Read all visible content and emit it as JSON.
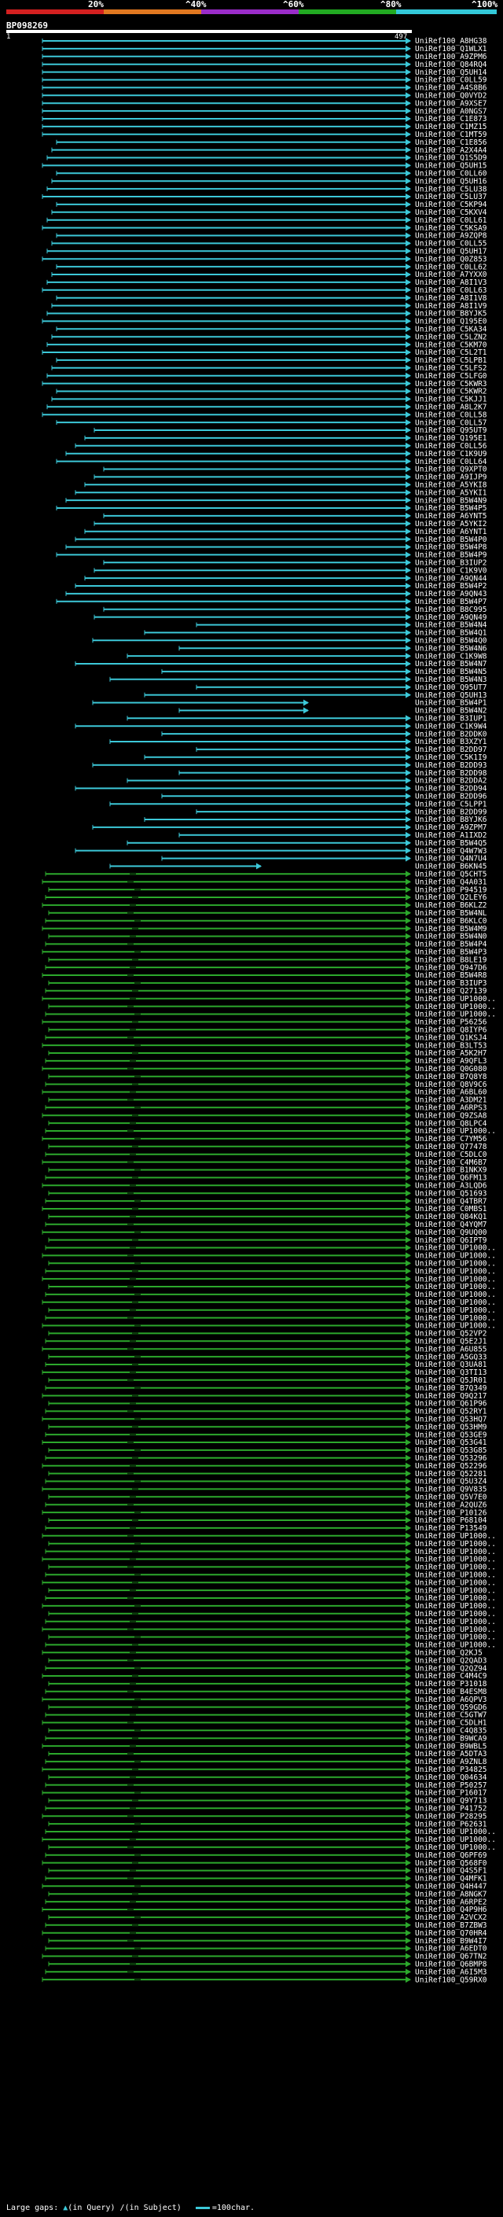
{
  "legend": {
    "labels": [
      "20%",
      "^40%",
      "^60%",
      "^80%",
      "^100%"
    ],
    "colors": [
      "#d42020",
      "#e07820",
      "#9a2cc8",
      "#22aa22",
      "#33c8d8"
    ]
  },
  "query": {
    "id": "BP098269",
    "start": "1",
    "end": "497"
  },
  "hits": [
    "UniRef100_A8HG38",
    "UniRef100_Q1WLX1",
    "UniRef100_A9ZPM6",
    "UniRef100_Q84RQ4",
    "UniRef100_Q5UH14",
    "UniRef100_C0LL59",
    "UniRef100_A4S8B6",
    "UniRef100_Q0VYD2",
    "UniRef100_A9XSE7",
    "UniRef100_A0NGS7",
    "UniRef100_C1E873",
    "UniRef100_C1MZ15",
    "UniRef100_C1MT59",
    "UniRef100_C1E856",
    "UniRef100_A2X4A4",
    "UniRef100_Q1S5D9",
    "UniRef100_Q5UH15",
    "UniRef100_C0LL60",
    "UniRef100_Q5UH16",
    "UniRef100_C5LU38",
    "UniRef100_C5LU37",
    "UniRef100_C5KP94",
    "UniRef100_C5KXV4",
    "UniRef100_C0LL61",
    "UniRef100_C5KSA9",
    "UniRef100_A9ZQP8",
    "UniRef100_C0LL55",
    "UniRef100_Q5UH17",
    "UniRef100_Q0Z853",
    "UniRef100_C0LL62",
    "UniRef100_A7YXX0",
    "UniRef100_A8I1V3",
    "UniRef100_C0LL63",
    "UniRef100_A8I1V8",
    "UniRef100_A8I1V9",
    "UniRef100_B8YJK5",
    "UniRef100_Q195E0",
    "UniRef100_C5KA34",
    "UniRef100_C5LZN2",
    "UniRef100_C5KM70",
    "UniRef100_C5L2T1",
    "UniRef100_C5LPB1",
    "UniRef100_C5LFS2",
    "UniRef100_C5LFG0",
    "UniRef100_C5KWR3",
    "UniRef100_C5KWR2",
    "UniRef100_C5KJJ1",
    "UniRef100_A8L2K7",
    "UniRef100_C0LL58",
    "UniRef100_C0LL57",
    "UniRef100_Q95UT9",
    "UniRef100_Q195E1",
    "UniRef100_C0LL56",
    "UniRef100_C1K9U9",
    "UniRef100_C0LL64",
    "UniRef100_Q9XPT0",
    "UniRef100_A9IJP9",
    "UniRef100_A5YKI8",
    "UniRef100_A5YKI1",
    "UniRef100_B5W4N9",
    "UniRef100_B5W4P5",
    "UniRef100_A6YNT5",
    "UniRef100_A5YKI2",
    "UniRef100_A6YNT1",
    "UniRef100_B5W4P0",
    "UniRef100_B5W4P8",
    "UniRef100_B5W4P9",
    "UniRef100_B3IUP2",
    "UniRef100_C1K9V0",
    "UniRef100_A9QN44",
    "UniRef100_B5W4P2",
    "UniRef100_A9QN43",
    "UniRef100_B5W4P7",
    "UniRef100_B8C995",
    "UniRef100_A9QN49",
    "UniRef100_B5W4N4",
    "UniRef100_B5W4Q1",
    "UniRef100_B5W4Q0",
    "UniRef100_B5W4N6",
    "UniRef100_C1K9W8",
    "UniRef100_B5W4N7",
    "UniRef100_B5W4N5",
    "UniRef100_B5W4N3",
    "UniRef100_Q95UT7",
    "UniRef100_Q5UH13",
    "UniRef100_B5W4P1",
    "UniRef100_B5W4N2",
    "UniRef100_B3IUP1",
    "UniRef100_C1K9W4",
    "UniRef100_B2DDK0",
    "UniRef100_B3XZY1",
    "UniRef100_B2DD97",
    "UniRef100_C5K1I9",
    "UniRef100_B2DD93",
    "UniRef100_B2DD98",
    "UniRef100_B2DDA2",
    "UniRef100_B2DD94",
    "UniRef100_B2DD96",
    "UniRef100_C5LPP1",
    "UniRef100_B2DD99",
    "UniRef100_B8YJK6",
    "UniRef100_A9ZPM7",
    "UniRef100_A1IXD2",
    "UniRef100_B5W4Q5",
    "UniRef100_Q4W7W3",
    "UniRef100_Q4N7U4",
    "UniRef100_B6KN45",
    "UniRef100_Q5CHT5",
    "UniRef100_Q4A031",
    "UniRef100_P94519",
    "UniRef100_Q2LEY6",
    "UniRef100_B6KLZ2",
    "UniRef100_B5W4NL",
    "UniRef100_B6KLC0",
    "UniRef100_B5W4M9",
    "UniRef100_B5W4N0",
    "UniRef100_B5W4P4",
    "UniRef100_B5W4P3",
    "UniRef100_B8LE19",
    "UniRef100_Q947D6",
    "UniRef100_B5W4R8",
    "UniRef100_B3IUP3",
    "UniRef100_Q27139",
    "UniRef100_UP1000..",
    "UniRef100_UP1000..",
    "UniRef100_UP1000..",
    "UniRef100_P56256",
    "UniRef100_Q8IYP6",
    "UniRef100_Q1KSJ4",
    "UniRef100_B3LT53",
    "UniRef100_A5K2H7",
    "UniRef100_A9QFL3",
    "UniRef100_Q0G080",
    "UniRef100_B7Q8Y8",
    "UniRef100_Q8V9C6",
    "UniRef100_A6BL60",
    "UniRef100_A3DM21",
    "UniRef100_A6RPS3",
    "UniRef100_Q9ZSA8",
    "UniRef100_Q8LPC4",
    "UniRef100_UP1000..",
    "UniRef100_C7YM56",
    "UniRef100_Q77478",
    "UniRef100_C5DLC0",
    "UniRef100_C4M6B7",
    "UniRef100_B1NKX9",
    "UniRef100_Q6FM13",
    "UniRef100_A3LQD6",
    "UniRef100_Q51693",
    "UniRef100_Q4TBR7",
    "UniRef100_C0MBS1",
    "UniRef100_Q84KQ1",
    "UniRef100_Q4YQM7",
    "UniRef100_Q9UQ00",
    "UniRef100_Q6IPT9",
    "UniRef100_UP1000..",
    "UniRef100_UP1000..",
    "UniRef100_UP1000..",
    "UniRef100_UP1000..",
    "UniRef100_UP1000..",
    "UniRef100_UP1000..",
    "UniRef100_UP1000..",
    "UniRef100_UP1000..",
    "UniRef100_UP1000..",
    "UniRef100_UP1000..",
    "UniRef100_UP1000..",
    "UniRef100_Q52VP2",
    "UniRef100_Q5E2J1",
    "UniRef100_A6U855",
    "UniRef100_A5GQ33",
    "UniRef100_Q3UA81",
    "UniRef100_Q3TI13",
    "UniRef100_Q5JR01",
    "UniRef100_B7Q349",
    "UniRef100_Q9Q217",
    "UniRef100_Q61P96",
    "UniRef100_Q52RY1",
    "UniRef100_Q53HQ7",
    "UniRef100_Q53HM9",
    "UniRef100_Q53GE9",
    "UniRef100_Q53G41",
    "UniRef100_Q53G85",
    "UniRef100_Q53296",
    "UniRef100_Q52296",
    "UniRef100_Q52281",
    "UniRef100_Q5U3Z4",
    "UniRef100_Q9V835",
    "UniRef100_Q5V7E0",
    "UniRef100_A2QUZ6",
    "UniRef100_P10126",
    "UniRef100_P68104",
    "UniRef100_P13549",
    "UniRef100_UP1000..",
    "UniRef100_UP1000..",
    "UniRef100_UP1000..",
    "UniRef100_UP1000..",
    "UniRef100_UP1000..",
    "UniRef100_UP1000..",
    "UniRef100_UP1000..",
    "UniRef100_UP1000..",
    "UniRef100_UP1000..",
    "UniRef100_UP1000..",
    "UniRef100_UP1000..",
    "UniRef100_UP1000..",
    "UniRef100_UP1000..",
    "UniRef100_UP1000..",
    "UniRef100_UP1000..",
    "UniRef100_Q2KJ5",
    "UniRef100_Q2QAD3",
    "UniRef100_Q2QZ94",
    "UniRef100_C4M4C9",
    "UniRef100_P31018",
    "UniRef100_B4ESM8",
    "UniRef100_A6QPV3",
    "UniRef100_Q59GD6",
    "UniRef100_C5GTW7",
    "UniRef100_C5DLH1",
    "UniRef100_C4Q835",
    "UniRef100_B9WCA9",
    "UniRef100_B9WBL5",
    "UniRef100_A5DTA3",
    "UniRef100_A9ZNL8",
    "UniRef100_P34825",
    "UniRef100_Q04634",
    "UniRef100_P50257",
    "UniRef100_P16017",
    "UniRef100_Q9Y713",
    "UniRef100_P41752",
    "UniRef100_P28295",
    "UniRef100_P62631",
    "UniRef100_UP1000..",
    "UniRef100_UP1000..",
    "UniRef100_UP1000..",
    "UniRef100_Q6PF69",
    "UniRef100_Q568F0",
    "UniRef100_Q4S5F1",
    "UniRef100_Q4MFK1",
    "UniRef100_Q4H447",
    "UniRef100_A8NGK7",
    "UniRef100_A6RPE2",
    "UniRef100_Q4P9H6",
    "UniRef100_A2VCX2",
    "UniRef100_B7ZBW3",
    "UniRef100_Q70HR4",
    "UniRef100_B9W4I7",
    "UniRef100_A6EDT0",
    "UniRef100_Q67TN2",
    "UniRef100_Q6BMP8",
    "UniRef100_A6I5M3",
    "UniRef100_Q59RX0"
  ],
  "footer": {
    "gaps_label": "Large gaps:",
    "gap_query_text": "(in Query)",
    "gap_subject_text": "(in Subject)",
    "scale_label": "=100char."
  }
}
